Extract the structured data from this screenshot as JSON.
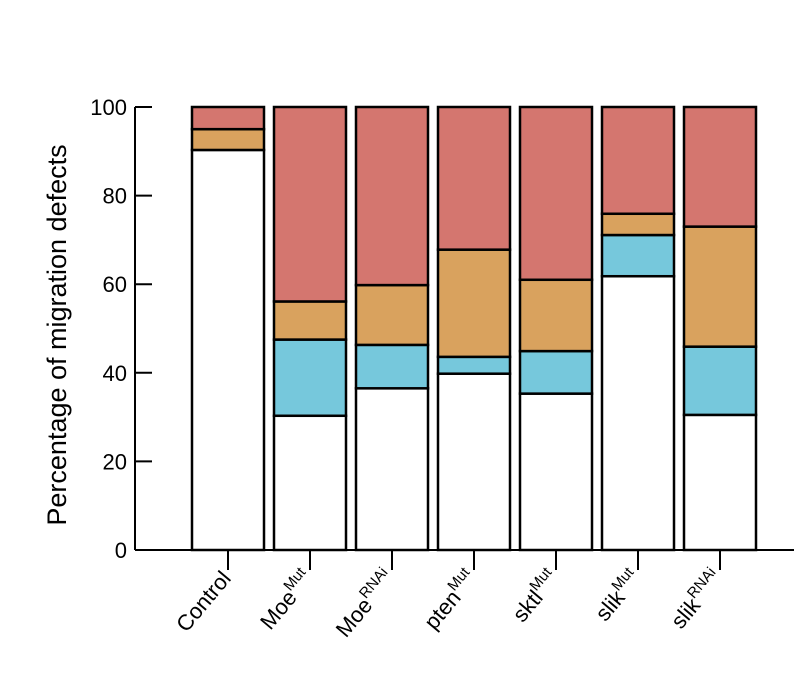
{
  "chart_data": {
    "type": "bar",
    "stacked": true,
    "categories": [
      {
        "base": "Control",
        "sup": ""
      },
      {
        "base": "Moe",
        "sup": "Mut"
      },
      {
        "base": "Moe",
        "sup": "RNAi"
      },
      {
        "base": "pten",
        "sup": "Mut"
      },
      {
        "base": "sktl",
        "sup": "Mut"
      },
      {
        "base": "slik",
        "sup": "Mut"
      },
      {
        "base": "slik",
        "sup": "RNAi"
      }
    ],
    "series": [
      {
        "color": "#ffffff",
        "values": [
          90.3,
          30.3,
          36.5,
          39.8,
          35.3,
          61.8,
          30.5
        ]
      },
      {
        "color": "#76c8dc",
        "values": [
          0,
          17.2,
          9.8,
          3.8,
          9.6,
          9.3,
          15.4
        ]
      },
      {
        "color": "#d9a25e",
        "values": [
          4.7,
          8.6,
          13.5,
          24.2,
          16.1,
          4.8,
          27.1
        ]
      },
      {
        "color": "#d4766f",
        "values": [
          5.0,
          43.9,
          40.2,
          32.2,
          39.0,
          24.1,
          27.0
        ]
      }
    ],
    "ylabel": "Percentage of migration defects",
    "ylim": [
      0,
      100
    ],
    "yticks": [
      0,
      20,
      40,
      60,
      80,
      100
    ],
    "grid": false
  }
}
